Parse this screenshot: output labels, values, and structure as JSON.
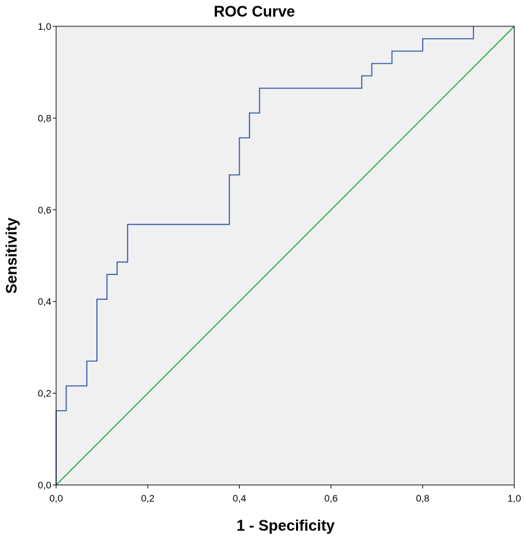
{
  "chart_data": {
    "type": "line",
    "title": "ROC Curve",
    "xlabel": "1 - Specificity",
    "ylabel": "Sensitivity",
    "xlim": [
      0,
      1
    ],
    "ylim": [
      0,
      1
    ],
    "x_ticks": [
      "0,0",
      "0,2",
      "0,4",
      "0,6",
      "0,8",
      "1,0"
    ],
    "y_ticks": [
      "0,0",
      "0,2",
      "0,4",
      "0,6",
      "0,8",
      "1,0"
    ],
    "grid": false,
    "plot_background": "#f0f0f0",
    "series": [
      {
        "color": "#3a5faa",
        "x": [
          0.0,
          0.0,
          0.022,
          0.022,
          0.067,
          0.067,
          0.089,
          0.089,
          0.111,
          0.111,
          0.133,
          0.133,
          0.156,
          0.156,
          0.378,
          0.378,
          0.4,
          0.4,
          0.422,
          0.422,
          0.444,
          0.444,
          0.667,
          0.667,
          0.689,
          0.689,
          0.733,
          0.733,
          0.8,
          0.8,
          0.911,
          0.911
        ],
        "y": [
          0.0,
          0.162,
          0.162,
          0.216,
          0.216,
          0.27,
          0.27,
          0.405,
          0.405,
          0.459,
          0.459,
          0.486,
          0.486,
          0.568,
          0.568,
          0.676,
          0.676,
          0.757,
          0.757,
          0.811,
          0.811,
          0.865,
          0.865,
          0.892,
          0.892,
          0.919,
          0.919,
          0.946,
          0.946,
          0.973,
          0.973,
          1.0
        ]
      },
      {
        "color": "#22b14c",
        "x": [
          0.0,
          1.0
        ],
        "y": [
          0.0,
          1.0
        ]
      }
    ]
  }
}
